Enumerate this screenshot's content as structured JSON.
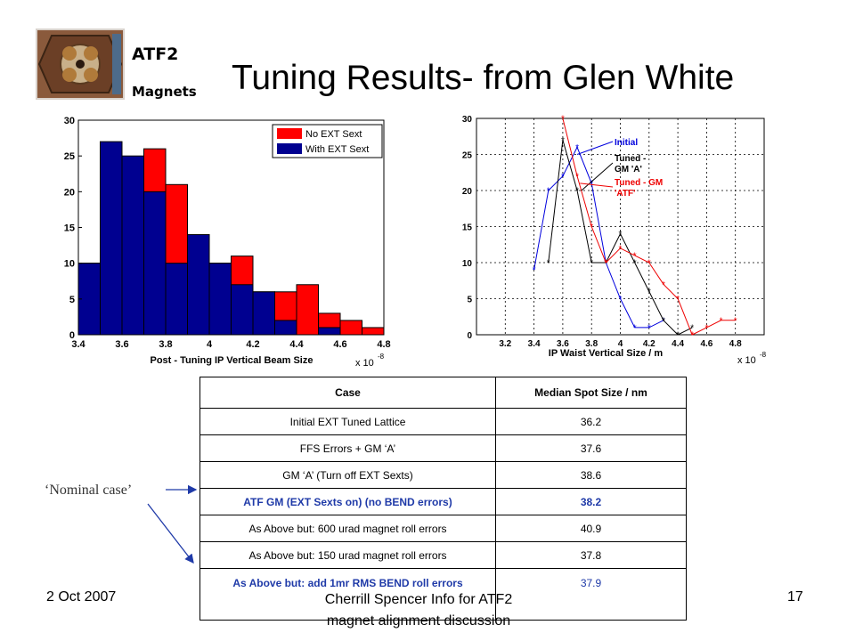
{
  "branding": {
    "line1": "ATF2",
    "line2": "Magnets"
  },
  "slide_title": "Tuning Results- from Glen White",
  "chart_data": [
    {
      "type": "bar",
      "xlabel": "Post - Tuning IP Vertical Beam Size",
      "x_multiplier": "x 10",
      "x_exponent": "-8",
      "xlim": [
        3.4,
        4.8
      ],
      "ylim": [
        0,
        30
      ],
      "x_ticks": [
        "3.4",
        "3.6",
        "3.8",
        "4",
        "4.2",
        "4.4",
        "4.6",
        "4.8"
      ],
      "y_ticks": [
        "0",
        "5",
        "10",
        "15",
        "20",
        "25",
        "30"
      ],
      "bin_edges": [
        3.4,
        3.5,
        3.6,
        3.7,
        3.8,
        3.9,
        4.0,
        4.1,
        4.2,
        4.3,
        4.4,
        4.5,
        4.6,
        4.7,
        4.8
      ],
      "grid": false,
      "legend_placement": "top-right",
      "series": [
        {
          "name": "No EXT Sext",
          "color": "#ff0000",
          "values": [
            10,
            13,
            21,
            26,
            21,
            10,
            10,
            11,
            6,
            6,
            7,
            3,
            2,
            1
          ]
        },
        {
          "name": "With EXT Sext",
          "color": "#000090",
          "values": [
            10,
            27,
            25,
            20,
            10,
            14,
            10,
            7,
            6,
            2,
            0,
            1,
            0,
            0
          ]
        }
      ]
    },
    {
      "type": "line",
      "xlabel": "IP Waist Vertical Size / m",
      "x_multiplier": "x 10",
      "x_exponent": "-8",
      "xlim": [
        3.0,
        5.0
      ],
      "ylim": [
        0,
        30
      ],
      "x_ticks": [
        "3.2",
        "3.4",
        "3.6",
        "3.8",
        "4",
        "4.2",
        "4.4",
        "4.6",
        "4.8"
      ],
      "y_ticks": [
        "0",
        "5",
        "10",
        "15",
        "20",
        "25",
        "30"
      ],
      "grid": true,
      "series": [
        {
          "name": "Initial",
          "color": "#0000dd",
          "x": [
            3.4,
            3.5,
            3.6,
            3.7,
            3.8,
            3.9,
            4.0,
            4.1,
            4.2,
            4.3
          ],
          "y": [
            9,
            20,
            22,
            26,
            21,
            10,
            5,
            1,
            1,
            2
          ]
        },
        {
          "name": "Tuned - GM 'A'",
          "color": "#000000",
          "x": [
            3.5,
            3.6,
            3.7,
            3.8,
            3.9,
            4.0,
            4.1,
            4.2,
            4.3,
            4.4,
            4.5
          ],
          "y": [
            10,
            27,
            20,
            10,
            10,
            14,
            10,
            6,
            2,
            0,
            1
          ]
        },
        {
          "name": "Tuned - GM 'ATF'",
          "color": "#ee0000",
          "x": [
            3.6,
            3.7,
            3.8,
            3.9,
            4.0,
            4.1,
            4.2,
            4.3,
            4.4,
            4.5,
            4.6,
            4.7,
            4.8
          ],
          "y": [
            30,
            22,
            15,
            10,
            12,
            11,
            10,
            7,
            5,
            0,
            1,
            2,
            2
          ]
        }
      ],
      "annotations": {
        "initial_label": "Initial",
        "gm_a_label_line1": "Tuned -",
        "gm_a_label_line2": "GM 'A'",
        "atf_label_line1": "Tuned - GM",
        "atf_label_line2": "'ATF'"
      }
    }
  ],
  "table": {
    "headers": [
      "Case",
      "Median Spot Size / nm"
    ],
    "rows": [
      {
        "case": "Initial EXT Tuned Lattice",
        "value": "36.2"
      },
      {
        "case": "FFS Errors + GM ‘A’",
        "value": "37.6"
      },
      {
        "case": "GM ‘A’ (Turn off EXT Sexts)",
        "value": "38.6"
      },
      {
        "case": "ATF GM (EXT Sexts on) (no BEND errors)",
        "value": "38.2"
      },
      {
        "case": "As Above but: 600 urad magnet roll errors",
        "value": "40.9"
      },
      {
        "case": "As Above but: 150 urad magnet roll errors",
        "value": "37.8"
      },
      {
        "case": "As Above but: add 1mr RMS BEND roll errors",
        "value": "37.9"
      }
    ],
    "highlight_color": "#1f3aa8"
  },
  "nominal_label": "‘Nominal case’",
  "footer": {
    "date": "2 Oct  2007",
    "center_line1": "Cherrill Spencer Info for ATF2",
    "center_line2": "magnet alignment discussion",
    "page": "17"
  }
}
